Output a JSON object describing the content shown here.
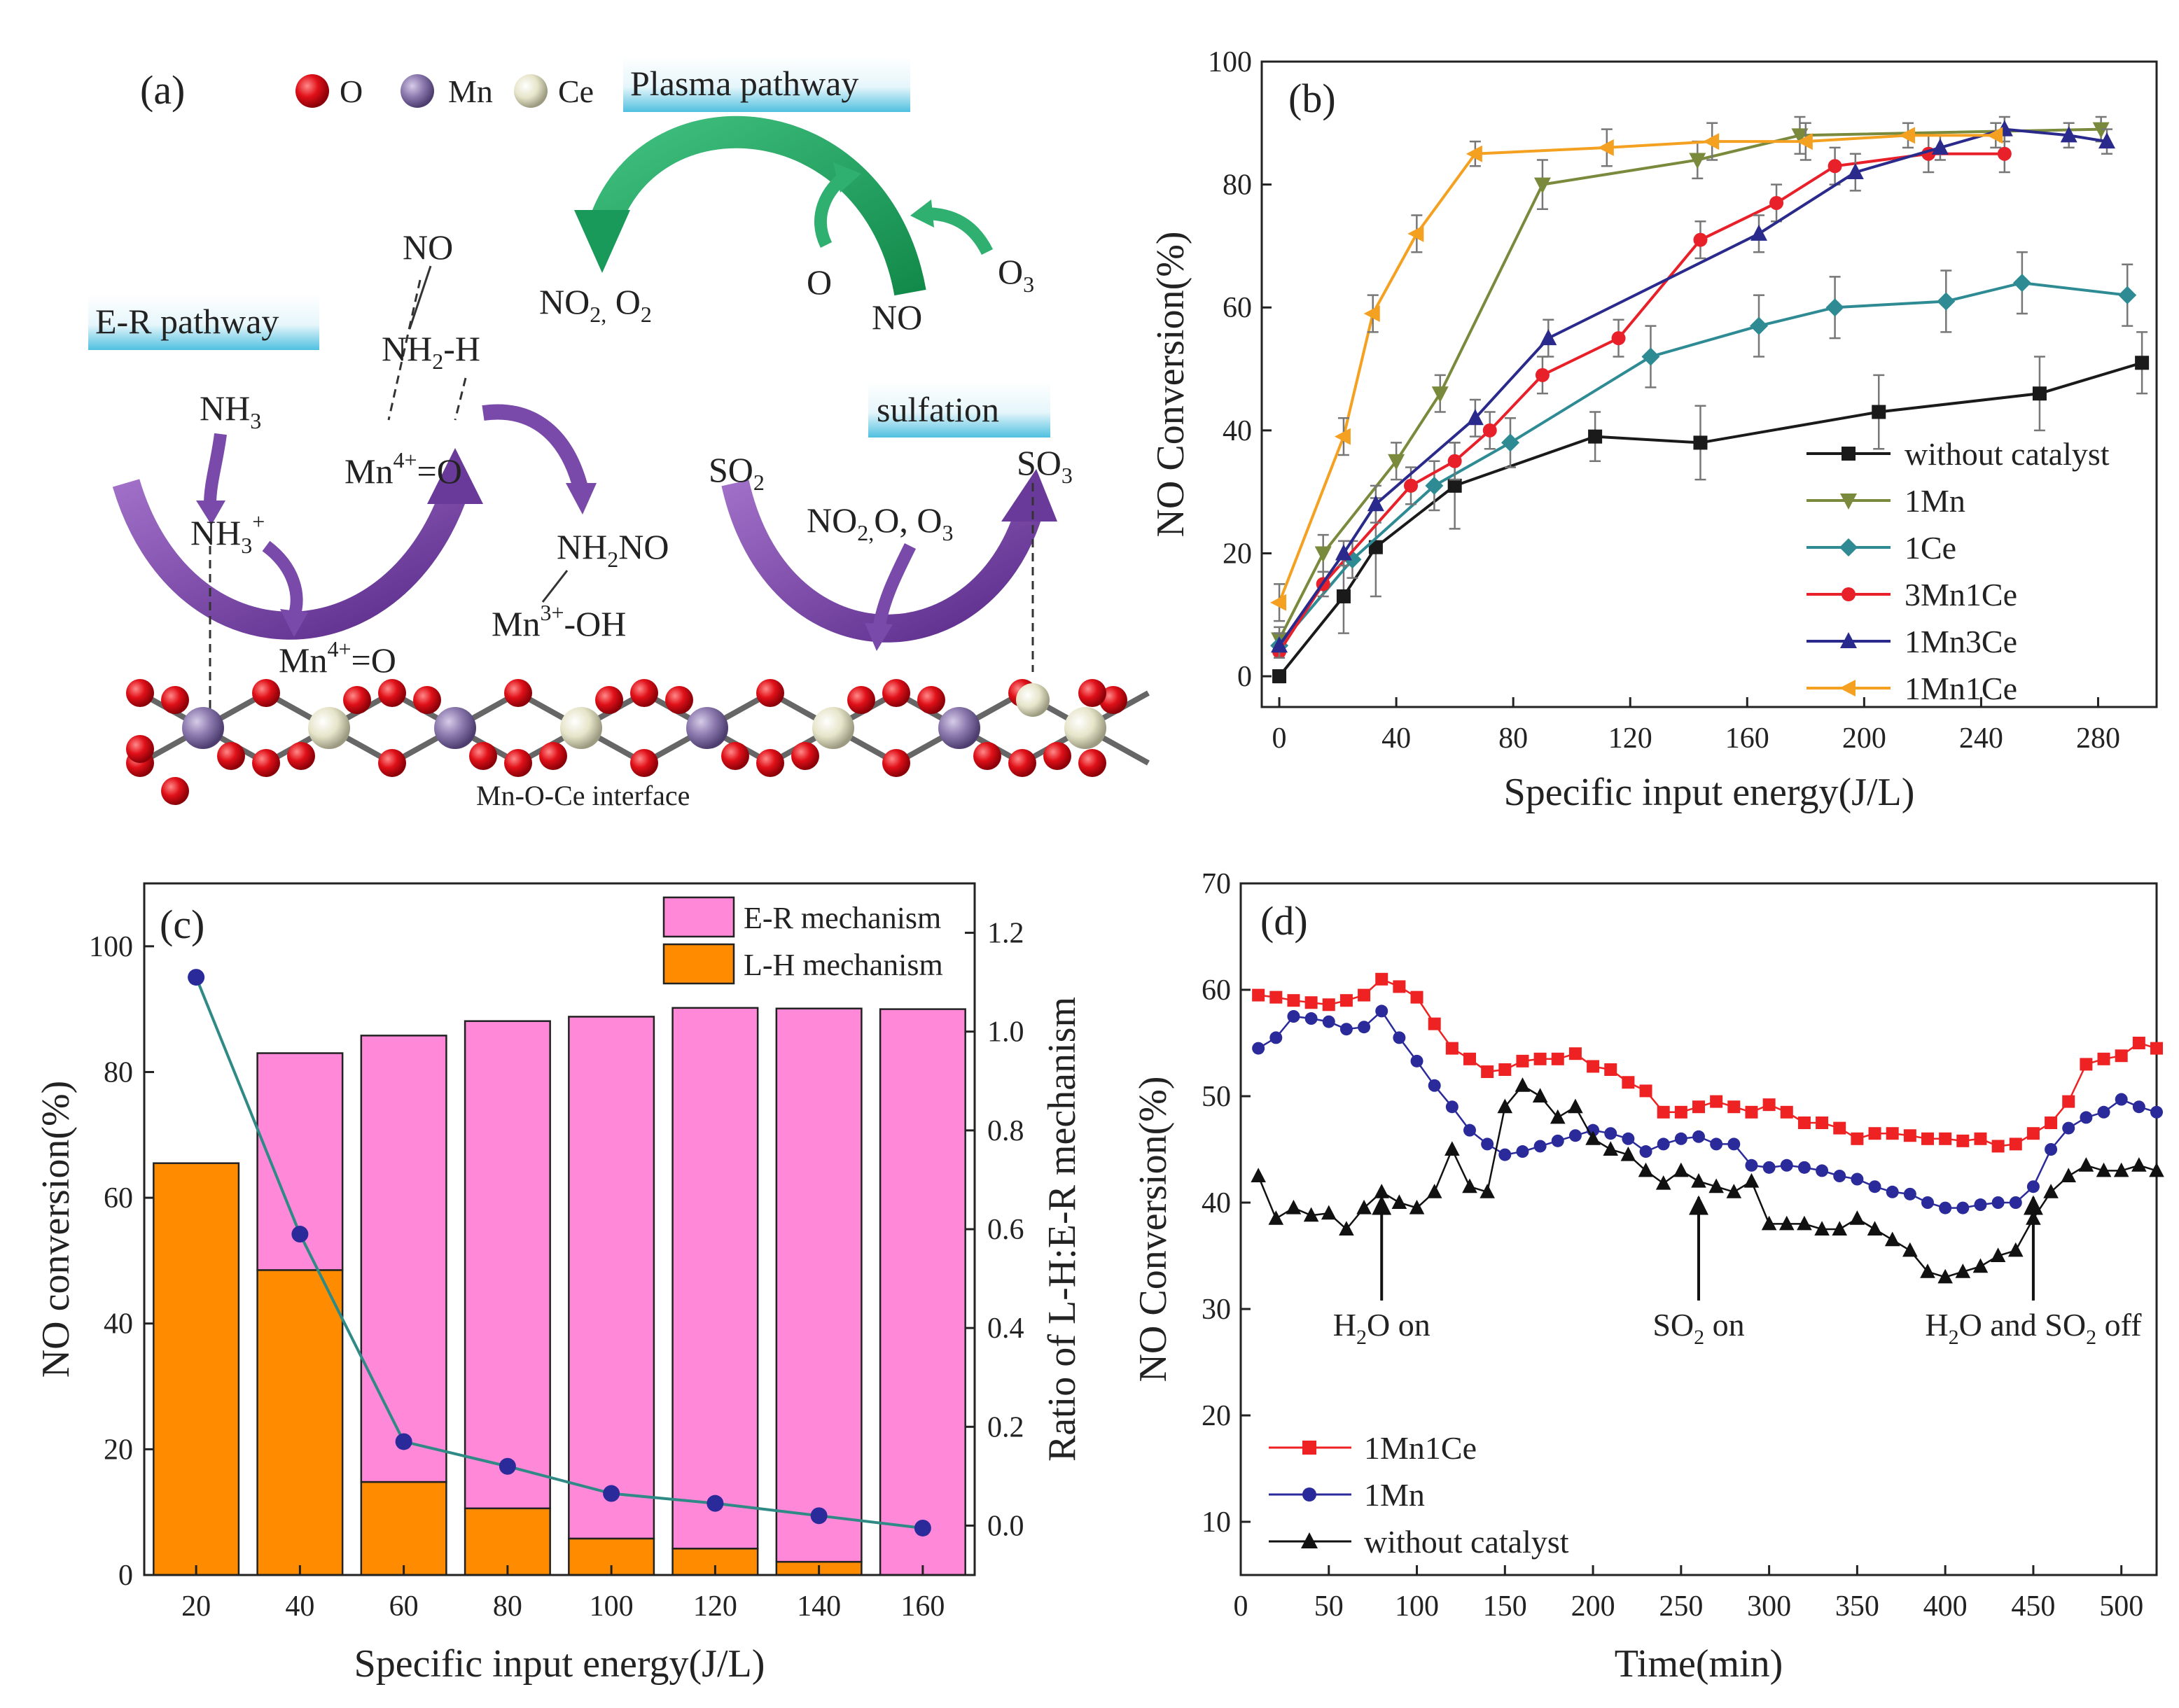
{
  "panel_a": {
    "label": "(a)",
    "legend": [
      {
        "symbol": "o-atom",
        "text": "O",
        "color": "#d8101c"
      },
      {
        "symbol": "mn-atom",
        "text": "Mn",
        "color": "#8e7cb0"
      },
      {
        "symbol": "ce-atom",
        "text": "Ce",
        "color": "#e8e6cc"
      }
    ],
    "plasma_header": "Plasma pathway",
    "er_header": "E-R pathway",
    "sulfation_header": "sulfation",
    "interface_label": "Mn-O-Ce interface",
    "species": {
      "no_top": "NO",
      "nh2h": "NH",
      "nh2h_sub": "2",
      "nh2h_tail": "-H",
      "mn4o_top": "Mn",
      "mn4o_top_sup": "4+",
      "mn4o_top_tail": "=O",
      "nh3": "NH",
      "nh3_sub": "3",
      "nh3_plus": "NH",
      "nh3_plus_sub": "3",
      "nh3_plus_sup": "+",
      "mn4o_bottom": "Mn",
      "mn4o_bottom_sup": "4+",
      "mn4o_bottom_tail": "=O",
      "nh2no": "NH",
      "nh2no_sub": "2",
      "nh2no_tail": "NO",
      "mn3oh": "Mn",
      "mn3oh_sup": "3+",
      "mn3oh_tail": "-OH",
      "no2o2": "NO",
      "no2o2_sub": "2,",
      "no2o2_tail": " O",
      "no2o2_sub2": "2",
      "o_plasma": "O",
      "no_plasma": "NO",
      "o3_plasma": "O",
      "o3_plasma_sub": "3",
      "so2": "SO",
      "so2_sub": "2",
      "so3": "SO",
      "so3_sub": "3",
      "no2oo3": "NO",
      "no2oo3_sub": "2,",
      "no2oo3_tail": "O, O",
      "no2oo3_sub2": "3"
    }
  },
  "panel_b": {
    "label": "(b)"
  },
  "panel_c": {
    "label": "(c)"
  },
  "panel_d": {
    "label": "(d)"
  },
  "chart_data": [
    {
      "id": "b",
      "type": "line",
      "title": "",
      "xlabel": "Specific input energy(J/L)",
      "ylabel": "NO Conversion(%)",
      "xlim": [
        -6,
        300
      ],
      "ylim": [
        -5,
        100
      ],
      "xticks": [
        "0",
        "40",
        "80",
        "120",
        "160",
        "200",
        "240",
        "280"
      ],
      "yticks": [
        "0",
        "20",
        "40",
        "60",
        "80",
        "100"
      ],
      "legend_position": "bottom-right",
      "series": [
        {
          "name": "without catalyst",
          "color": "#1a1a1a",
          "marker": "square",
          "x": [
            0,
            22,
            33,
            60,
            108,
            144,
            205,
            260,
            295
          ],
          "y": [
            0,
            13,
            21,
            31,
            39,
            38,
            43,
            46,
            51
          ],
          "err": [
            1,
            6,
            8,
            7,
            4,
            6,
            6,
            6,
            5
          ]
        },
        {
          "name": "1Mn",
          "color": "#7a8a3c",
          "marker": "triangle-down",
          "x": [
            0,
            15,
            40,
            55,
            90,
            143,
            178,
            281
          ],
          "y": [
            6,
            20,
            35,
            46,
            80,
            84,
            88,
            89
          ],
          "err": [
            2,
            3,
            3,
            3,
            4,
            3,
            3,
            2
          ]
        },
        {
          "name": "1Ce",
          "color": "#2e8b93",
          "marker": "diamond",
          "x": [
            0,
            25,
            53,
            79,
            127,
            164,
            190,
            228,
            254,
            290
          ],
          "y": [
            5,
            19,
            31,
            38,
            52,
            57,
            60,
            61,
            64,
            62
          ],
          "err": [
            2,
            3,
            4,
            4,
            5,
            5,
            5,
            5,
            5,
            5
          ]
        },
        {
          "name": "3Mn1Ce",
          "color": "#e8202a",
          "marker": "circle",
          "x": [
            0,
            15,
            45,
            60,
            72,
            90,
            116,
            144,
            170,
            190,
            222,
            248
          ],
          "y": [
            4,
            15,
            31,
            35,
            40,
            49,
            55,
            71,
            77,
            83,
            85,
            85
          ],
          "err": [
            1,
            2,
            3,
            3,
            3,
            3,
            3,
            3,
            3,
            3,
            3,
            3
          ]
        },
        {
          "name": "1Mn3Ce",
          "color": "#2a2a8c",
          "marker": "triangle-up",
          "x": [
            0,
            22,
            33,
            67,
            92,
            164,
            197,
            226,
            248,
            270,
            283
          ],
          "y": [
            5,
            20,
            28,
            42,
            55,
            72,
            82,
            86,
            89,
            88,
            87
          ],
          "err": [
            2,
            2,
            3,
            3,
            3,
            3,
            3,
            2,
            2,
            2,
            2
          ]
        },
        {
          "name": "1Mn1Ce",
          "color": "#f4a020",
          "marker": "triangle-left",
          "x": [
            0,
            22,
            32,
            47,
            67,
            112,
            148,
            180,
            215,
            245
          ],
          "y": [
            12,
            39,
            59,
            72,
            85,
            86,
            87,
            87,
            88,
            88
          ],
          "err": [
            3,
            3,
            3,
            3,
            2,
            3,
            3,
            3,
            2,
            2
          ]
        }
      ]
    },
    {
      "id": "c",
      "type": "bar",
      "title": "",
      "xlabel": "Specific input energy(J/L)",
      "ylabel": "NO conversion(%)",
      "ylabel_right": "Ratio of L-H:E-R mechanism",
      "categories": [
        "20",
        "40",
        "60",
        "80",
        "100",
        "120",
        "140",
        "160"
      ],
      "ylim": [
        0,
        110
      ],
      "ylim_right": [
        -0.1,
        1.3
      ],
      "yticks": [
        "0",
        "20",
        "40",
        "60",
        "80",
        "100"
      ],
      "yticks_right": [
        "0.0",
        "0.2",
        "0.4",
        "0.6",
        "0.8",
        "1.0",
        "1.2"
      ],
      "legend_position": "top-right",
      "series": [
        {
          "name": "E-R mechanism",
          "color": "#ff88d8",
          "values": [
            0,
            34.5,
            71,
            77.5,
            83,
            86,
            88,
            90
          ]
        },
        {
          "name": "L-H mechanism",
          "color": "#ff8c00",
          "values": [
            65.5,
            48.5,
            14.8,
            10.6,
            5.8,
            4.2,
            2.1,
            0
          ]
        }
      ],
      "total": [
        65.5,
        83,
        85.8,
        88.1,
        88.8,
        90.2,
        90.1,
        90
      ],
      "ratio_series": {
        "name": "Ratio of L-H:E-R",
        "color": "#2f8a86",
        "marker_color": "#2a2a9a",
        "values": [
          1.11,
          0.59,
          0.17,
          0.12,
          0.065,
          0.045,
          0.02,
          -0.005
        ]
      }
    },
    {
      "id": "d",
      "type": "line",
      "title": "",
      "xlabel": "Time(min)",
      "ylabel": "NO Conversion(%)",
      "xlim": [
        0,
        520
      ],
      "ylim": [
        5,
        70
      ],
      "xticks": [
        "0",
        "50",
        "100",
        "150",
        "200",
        "250",
        "300",
        "350",
        "400",
        "450",
        "500"
      ],
      "yticks": [
        "10",
        "20",
        "30",
        "40",
        "50",
        "60",
        "70"
      ],
      "legend_position": "bottom-left",
      "annotations": [
        {
          "text": "H",
          "sub": "2",
          "tail": "O on",
          "x": 80,
          "y": 37
        },
        {
          "text": "SO",
          "sub": "2",
          "tail": " on",
          "x": 260,
          "y": 37
        },
        {
          "text": "H",
          "sub": "2",
          "tail": "O and SO",
          "sub2": "2",
          "tail2": "  off",
          "x": 450,
          "y": 37
        }
      ],
      "series": [
        {
          "name": "1Mn1Ce",
          "color": "#ee2222",
          "marker": "square",
          "x": [
            10,
            20,
            30,
            40,
            50,
            60,
            70,
            80,
            90,
            100,
            110,
            120,
            130,
            140,
            150,
            160,
            170,
            180,
            190,
            200,
            210,
            220,
            230,
            240,
            250,
            260,
            270,
            280,
            290,
            300,
            310,
            320,
            330,
            340,
            350,
            360,
            370,
            380,
            390,
            400,
            410,
            420,
            430,
            440,
            450,
            460,
            470,
            480,
            490,
            500,
            510,
            520
          ],
          "y": [
            59.5,
            59.3,
            59,
            58.8,
            58.6,
            59,
            59.5,
            61,
            60.3,
            59.3,
            56.8,
            54.5,
            53.5,
            52.3,
            52.5,
            53.3,
            53.5,
            53.5,
            54,
            52.8,
            52.5,
            51.3,
            50.5,
            48.5,
            48.5,
            49,
            49.5,
            49,
            48.5,
            49.2,
            48.5,
            47.5,
            47.5,
            47,
            46,
            46.5,
            46.5,
            46.3,
            46,
            46,
            45.8,
            46,
            45.3,
            45.5,
            46.5,
            47.5,
            49.5,
            53,
            53.5,
            53.8,
            55,
            54.5
          ]
        },
        {
          "name": "1Mn",
          "color": "#2a2a9a",
          "marker": "circle",
          "x": [
            10,
            20,
            30,
            40,
            50,
            60,
            70,
            80,
            90,
            100,
            110,
            120,
            130,
            140,
            150,
            160,
            170,
            180,
            190,
            200,
            210,
            220,
            230,
            240,
            250,
            260,
            270,
            280,
            290,
            300,
            310,
            320,
            330,
            340,
            350,
            360,
            370,
            380,
            390,
            400,
            410,
            420,
            430,
            440,
            450,
            460,
            470,
            480,
            490,
            500,
            510,
            520
          ],
          "y": [
            54.5,
            55.5,
            57.5,
            57.3,
            57,
            56.3,
            56.5,
            58,
            55.5,
            53.3,
            51,
            49,
            46.8,
            45.5,
            44.5,
            44.8,
            45.3,
            45.8,
            46.3,
            46.8,
            46.5,
            46,
            44.8,
            45.5,
            46,
            46.2,
            45.5,
            45.5,
            43.5,
            43.3,
            43.5,
            43.3,
            43,
            42.5,
            42.2,
            41.5,
            41,
            40.8,
            40,
            39.5,
            39.5,
            39.8,
            40,
            40,
            41.5,
            45,
            47,
            48,
            48.5,
            49.7,
            49,
            48.5
          ]
        },
        {
          "name": "without catalyst",
          "color": "#111111",
          "marker": "triangle-up",
          "x": [
            10,
            20,
            30,
            40,
            50,
            60,
            70,
            80,
            90,
            100,
            110,
            120,
            130,
            140,
            150,
            160,
            170,
            180,
            190,
            200,
            210,
            220,
            230,
            240,
            250,
            260,
            270,
            280,
            290,
            300,
            310,
            320,
            330,
            340,
            350,
            360,
            370,
            380,
            390,
            400,
            410,
            420,
            430,
            440,
            450,
            460,
            470,
            480,
            490,
            500,
            510,
            520
          ],
          "y": [
            42.5,
            38.5,
            39.5,
            38.8,
            39,
            37.5,
            39.5,
            41,
            40,
            39.5,
            41,
            45,
            41.5,
            41,
            49,
            51,
            50,
            48,
            49,
            46,
            45,
            44.5,
            43,
            41.8,
            43,
            42,
            41.5,
            41,
            42,
            38,
            38,
            38,
            37.5,
            37.5,
            38.5,
            37.5,
            36.5,
            35.5,
            33.5,
            33,
            33.5,
            34,
            35,
            35.5,
            38.5,
            41,
            42.5,
            43.5,
            43,
            43,
            43.5,
            43
          ]
        }
      ]
    }
  ]
}
